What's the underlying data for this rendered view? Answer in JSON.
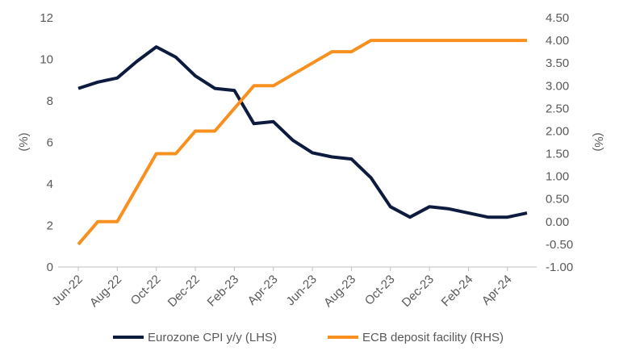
{
  "chart_data": {
    "type": "line",
    "categories": [
      "Jun-22",
      "Jul-22",
      "Aug-22",
      "Sep-22",
      "Oct-22",
      "Nov-22",
      "Dec-22",
      "Jan-23",
      "Feb-23",
      "Mar-23",
      "Apr-23",
      "May-23",
      "Jun-23",
      "Jul-23",
      "Aug-23",
      "Sep-23",
      "Oct-23",
      "Nov-23",
      "Dec-23",
      "Jan-24",
      "Feb-24",
      "Mar-24",
      "Apr-24",
      "May-24"
    ],
    "x_tick_labels": [
      "Jun-22",
      "Aug-22",
      "Oct-22",
      "Dec-22",
      "Feb-23",
      "Apr-23",
      "Jun-23",
      "Aug-23",
      "Oct-23",
      "Dec-23",
      "Feb-24",
      "Apr-24"
    ],
    "left_axis": {
      "label": "(%)",
      "ylim": [
        0,
        12
      ],
      "ticks": [
        "0",
        "2",
        "4",
        "6",
        "8",
        "10",
        "12"
      ]
    },
    "right_axis": {
      "label": "(%)",
      "ylim": [
        -1,
        4.5
      ],
      "ticks": [
        "-1.00",
        "-0.50",
        "0.00",
        "0.50",
        "1.00",
        "1.50",
        "2.00",
        "2.50",
        "3.00",
        "3.50",
        "4.00",
        "4.50"
      ]
    },
    "series": [
      {
        "name": "Eurozone CPI y/y (LHS)",
        "axis": "left",
        "color": "#0d1b3e",
        "values": [
          8.6,
          8.9,
          9.1,
          9.9,
          10.6,
          10.1,
          9.2,
          8.6,
          8.5,
          6.9,
          7.0,
          6.1,
          5.5,
          5.3,
          5.2,
          4.3,
          2.9,
          2.4,
          2.9,
          2.8,
          2.6,
          2.4,
          2.4,
          2.6
        ]
      },
      {
        "name": "ECB deposit facility (RHS)",
        "axis": "right",
        "color": "#f7901e",
        "values": [
          -0.5,
          0.0,
          0.0,
          0.75,
          1.5,
          1.5,
          2.0,
          2.0,
          2.5,
          3.0,
          3.0,
          3.25,
          3.5,
          3.75,
          3.75,
          4.0,
          4.0,
          4.0,
          4.0,
          4.0,
          4.0,
          4.0,
          4.0,
          4.0
        ]
      }
    ],
    "grid": false,
    "legend_position": "bottom"
  }
}
